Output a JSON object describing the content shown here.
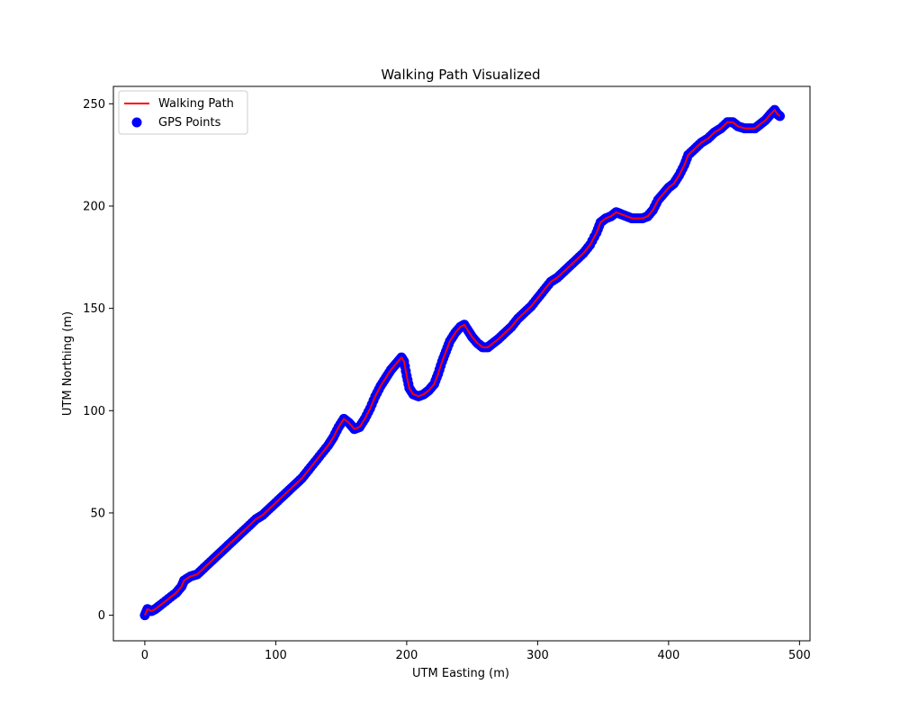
{
  "chart_data": {
    "type": "line",
    "title": "Walking Path Visualized",
    "xlabel": "UTM Easting (m)",
    "ylabel": "UTM Northing (m)",
    "xlim": [
      -24,
      508
    ],
    "ylim": [
      -12.5,
      258.5
    ],
    "xticks": [
      0,
      100,
      200,
      300,
      400,
      500
    ],
    "yticks": [
      0,
      50,
      100,
      150,
      200,
      250
    ],
    "grid": false,
    "legend_position": "upper-left",
    "series": [
      {
        "name": "Walking Path",
        "kind": "line",
        "color": "#ff0000",
        "points": [
          [
            0,
            0
          ],
          [
            2,
            3
          ],
          [
            5,
            2
          ],
          [
            8,
            3
          ],
          [
            12,
            5
          ],
          [
            18,
            8
          ],
          [
            24,
            11
          ],
          [
            28,
            14
          ],
          [
            30,
            17
          ],
          [
            35,
            19
          ],
          [
            40,
            20
          ],
          [
            45,
            23
          ],
          [
            50,
            26
          ],
          [
            55,
            29
          ],
          [
            60,
            32
          ],
          [
            65,
            35
          ],
          [
            70,
            38
          ],
          [
            75,
            41
          ],
          [
            80,
            44
          ],
          [
            85,
            47
          ],
          [
            90,
            49
          ],
          [
            95,
            52
          ],
          [
            100,
            55
          ],
          [
            105,
            58
          ],
          [
            110,
            61
          ],
          [
            115,
            64
          ],
          [
            120,
            67
          ],
          [
            125,
            71
          ],
          [
            130,
            75
          ],
          [
            135,
            79
          ],
          [
            140,
            83
          ],
          [
            144,
            87
          ],
          [
            148,
            92
          ],
          [
            152,
            96
          ],
          [
            156,
            94
          ],
          [
            160,
            91
          ],
          [
            164,
            92
          ],
          [
            168,
            96
          ],
          [
            172,
            101
          ],
          [
            176,
            107
          ],
          [
            180,
            112
          ],
          [
            184,
            116
          ],
          [
            188,
            120
          ],
          [
            192,
            123
          ],
          [
            196,
            126
          ],
          [
            198,
            124
          ],
          [
            200,
            117
          ],
          [
            202,
            111
          ],
          [
            205,
            108
          ],
          [
            209,
            107
          ],
          [
            213,
            108
          ],
          [
            217,
            110
          ],
          [
            221,
            113
          ],
          [
            224,
            118
          ],
          [
            227,
            124
          ],
          [
            230,
            129
          ],
          [
            233,
            134
          ],
          [
            237,
            138
          ],
          [
            241,
            141
          ],
          [
            244,
            142
          ],
          [
            247,
            139
          ],
          [
            250,
            136
          ],
          [
            254,
            133
          ],
          [
            258,
            131
          ],
          [
            262,
            131
          ],
          [
            266,
            133
          ],
          [
            270,
            135
          ],
          [
            275,
            138
          ],
          [
            280,
            141
          ],
          [
            285,
            145
          ],
          [
            290,
            148
          ],
          [
            295,
            151
          ],
          [
            300,
            155
          ],
          [
            305,
            159
          ],
          [
            310,
            163
          ],
          [
            315,
            165
          ],
          [
            320,
            168
          ],
          [
            325,
            171
          ],
          [
            330,
            174
          ],
          [
            335,
            177
          ],
          [
            340,
            181
          ],
          [
            345,
            187
          ],
          [
            348,
            192
          ],
          [
            352,
            194
          ],
          [
            356,
            195
          ],
          [
            360,
            197
          ],
          [
            364,
            196
          ],
          [
            368,
            195
          ],
          [
            372,
            194
          ],
          [
            376,
            194
          ],
          [
            380,
            194
          ],
          [
            384,
            195
          ],
          [
            388,
            198
          ],
          [
            392,
            203
          ],
          [
            396,
            206
          ],
          [
            400,
            209
          ],
          [
            404,
            211
          ],
          [
            408,
            215
          ],
          [
            412,
            220
          ],
          [
            415,
            225
          ],
          [
            420,
            228
          ],
          [
            425,
            231
          ],
          [
            430,
            233
          ],
          [
            435,
            236
          ],
          [
            440,
            238
          ],
          [
            445,
            241
          ],
          [
            449,
            241
          ],
          [
            453,
            239
          ],
          [
            458,
            238
          ],
          [
            462,
            238
          ],
          [
            466,
            238
          ],
          [
            470,
            240
          ],
          [
            474,
            242
          ],
          [
            478,
            245
          ],
          [
            481,
            247
          ],
          [
            483,
            245
          ],
          [
            485,
            244
          ]
        ]
      },
      {
        "name": "GPS Points",
        "kind": "scatter",
        "color": "#0000ff"
      }
    ]
  }
}
